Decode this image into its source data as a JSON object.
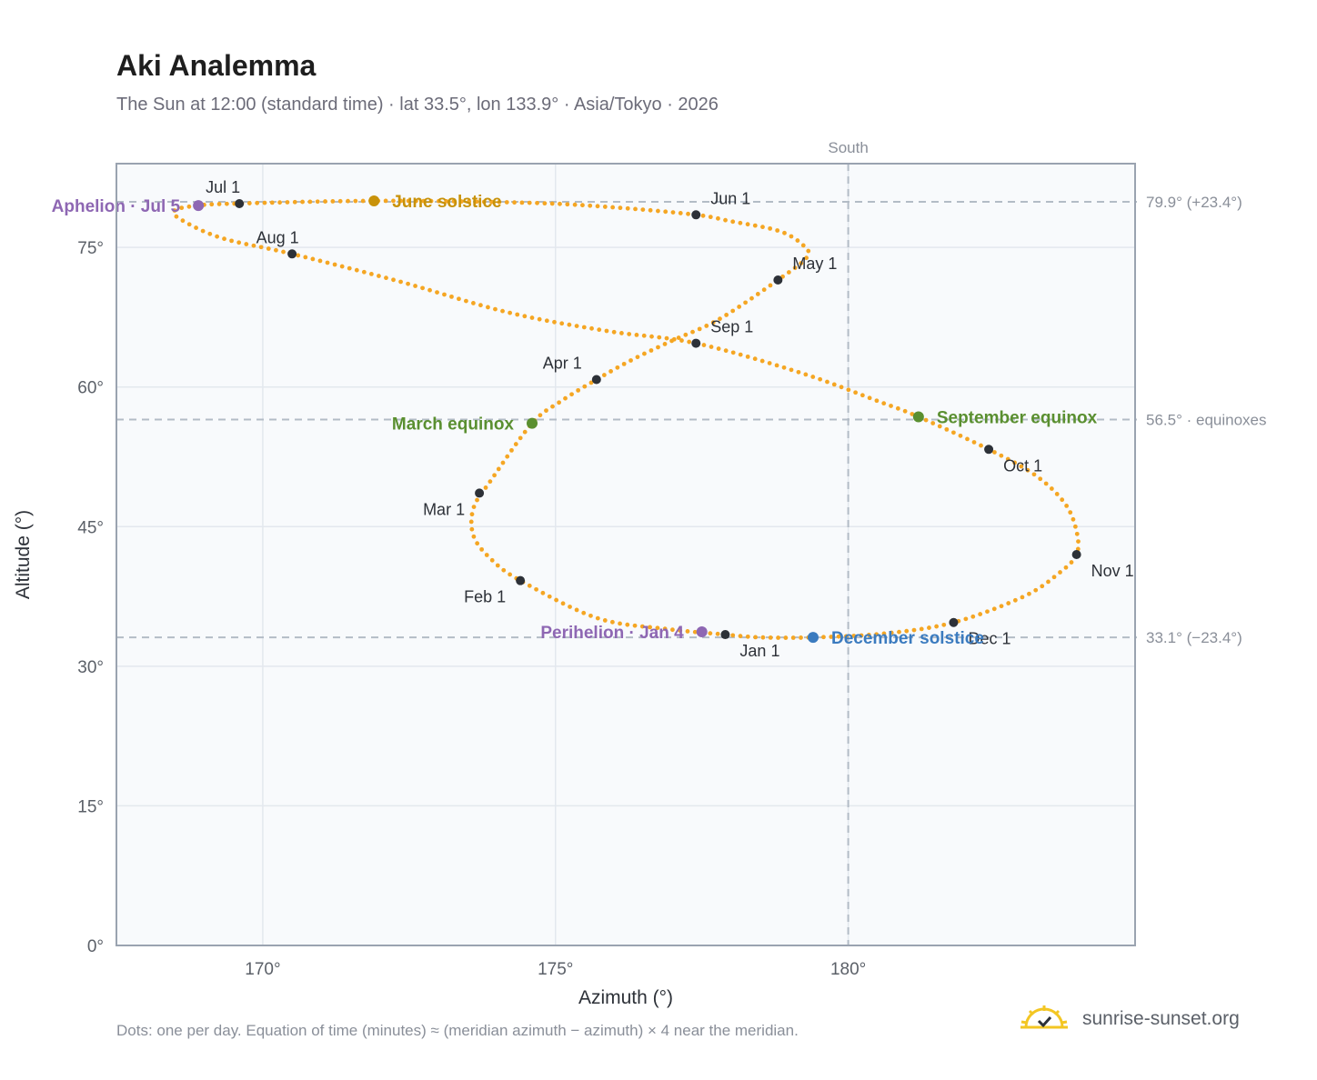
{
  "header": {
    "title": "Aki Analemma",
    "subtitle": "The Sun at 12:00 (standard time) · lat 33.5°, lon 133.9° · Asia/Tokyo · 2026"
  },
  "footer": {
    "footnote": "Dots: one per day. Equation of time (minutes) ≈ (meridian azimuth − azimuth) × 4 near the meridian.",
    "brand": "sunrise-sunset.org"
  },
  "colors": {
    "curve": "#f5a623",
    "month_dot": "#2d3138",
    "equinox": "#5a8f30",
    "june_solstice": "#c8920a",
    "december_solstice": "#3b7bbf",
    "apsis": "#8e67b3",
    "plot_bg": "#f8fafc",
    "grid": "#e3e8ee",
    "reference": "#b3bcc6",
    "frame": "#9aa3b0"
  },
  "chart_data": {
    "type": "scatter",
    "title": "Aki Analemma",
    "xlabel": "Azimuth (°)",
    "ylabel": "Altitude (°)",
    "xlim": [
      167.5,
      184.9
    ],
    "ylim": [
      0,
      84
    ],
    "x_ticks": [
      170,
      175,
      180
    ],
    "x_tick_labels": [
      "170°",
      "175°",
      "180°"
    ],
    "y_ticks": [
      0,
      15,
      30,
      45,
      60,
      75
    ],
    "y_tick_labels": [
      "0°",
      "15°",
      "30°",
      "45°",
      "60°",
      "75°"
    ],
    "grid": true,
    "reference_lines": {
      "vertical": [
        {
          "x": 180,
          "label": "South"
        }
      ],
      "horizontal": [
        {
          "y": 79.9,
          "label": "79.9° (+23.4°)"
        },
        {
          "y": 56.5,
          "label": "56.5° · equinoxes"
        },
        {
          "y": 33.1,
          "label": "33.1° (−23.4°)"
        }
      ]
    },
    "series": [
      {
        "daily_points": [
          [
            177.9,
            33.4
          ],
          [
            176.9,
            34.0
          ],
          [
            175.7,
            35.2
          ],
          [
            174.4,
            39.2
          ],
          [
            173.9,
            41.5
          ],
          [
            173.6,
            44.0
          ],
          [
            173.6,
            47.0
          ],
          [
            173.9,
            50.0
          ],
          [
            174.6,
            56.1
          ],
          [
            175.1,
            58.5
          ],
          [
            175.7,
            60.8
          ],
          [
            176.3,
            62.9
          ],
          [
            177.0,
            65.0
          ],
          [
            177.8,
            67.3
          ],
          [
            178.8,
            71.5
          ],
          [
            179.3,
            74.0
          ],
          [
            179.2,
            75.4
          ],
          [
            178.8,
            76.8
          ],
          [
            178.0,
            77.8
          ],
          [
            177.4,
            78.5
          ],
          [
            176.0,
            79.3
          ],
          [
            174.5,
            79.8
          ],
          [
            171.9,
            80.0
          ],
          [
            169.5,
            79.7
          ],
          [
            168.9,
            79.5
          ],
          [
            168.5,
            79.0
          ],
          [
            168.6,
            78.0
          ],
          [
            169.3,
            76.0
          ],
          [
            170.5,
            74.3
          ],
          [
            172.3,
            71.4
          ],
          [
            174.2,
            68.0
          ],
          [
            175.9,
            66.0
          ],
          [
            177.4,
            64.7
          ],
          [
            179.2,
            61.5
          ],
          [
            180.5,
            58.5
          ],
          [
            181.2,
            56.8
          ],
          [
            182.4,
            53.3
          ],
          [
            183.2,
            50.5
          ],
          [
            183.7,
            47.5
          ],
          [
            183.9,
            44.5
          ],
          [
            183.9,
            42.0
          ],
          [
            183.6,
            40.0
          ],
          [
            183.0,
            37.5
          ],
          [
            181.8,
            34.7
          ],
          [
            180.6,
            33.5
          ],
          [
            179.4,
            33.1
          ],
          [
            178.5,
            33.1
          ],
          [
            177.9,
            33.4
          ]
        ]
      }
    ],
    "month_markers": [
      {
        "label": "Jan 1",
        "az": 177.9,
        "alt": 33.4
      },
      {
        "label": "Feb 1",
        "az": 174.4,
        "alt": 39.2
      },
      {
        "label": "Mar 1",
        "az": 173.7,
        "alt": 48.6
      },
      {
        "label": "Apr 1",
        "az": 175.7,
        "alt": 60.8
      },
      {
        "label": "May 1",
        "az": 178.8,
        "alt": 71.5
      },
      {
        "label": "Jun 1",
        "az": 177.4,
        "alt": 78.5
      },
      {
        "label": "Jul 1",
        "az": 169.6,
        "alt": 79.7
      },
      {
        "label": "Aug 1",
        "az": 170.5,
        "alt": 74.3
      },
      {
        "label": "Sep 1",
        "az": 177.4,
        "alt": 64.7
      },
      {
        "label": "Oct 1",
        "az": 182.4,
        "alt": 53.3
      },
      {
        "label": "Nov 1",
        "az": 183.9,
        "alt": 42.0
      },
      {
        "label": "Dec 1",
        "az": 181.8,
        "alt": 34.7
      }
    ],
    "events": [
      {
        "label": "March equinox",
        "az": 174.6,
        "alt": 56.1,
        "kind": "equinox",
        "side": "left"
      },
      {
        "label": "June solstice",
        "az": 171.9,
        "alt": 80.0,
        "kind": "june_solstice",
        "side": "right"
      },
      {
        "label": "September equinox",
        "az": 181.2,
        "alt": 56.8,
        "kind": "equinox",
        "side": "right"
      },
      {
        "label": "December solstice",
        "az": 179.4,
        "alt": 33.1,
        "kind": "december_solstice",
        "side": "right"
      },
      {
        "label": "Aphelion · Jul 5",
        "az": 168.9,
        "alt": 79.5,
        "kind": "apsis",
        "side": "left"
      },
      {
        "label": "Perihelion · Jan 4",
        "az": 177.5,
        "alt": 33.7,
        "kind": "apsis",
        "side": "left"
      }
    ]
  }
}
